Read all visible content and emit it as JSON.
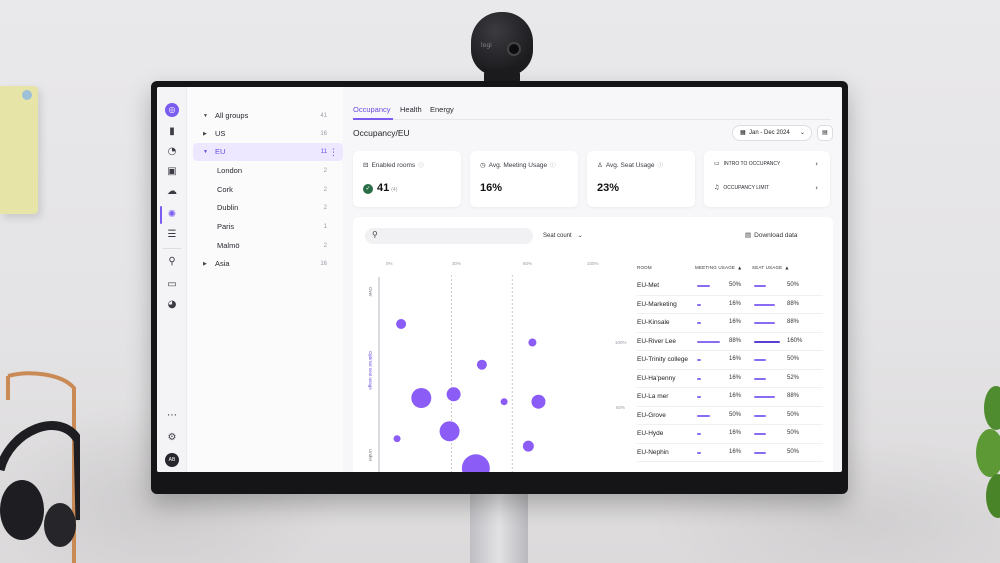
{
  "app": {
    "rail_icons": [
      "logo-icon",
      "panel-icon",
      "gauge-icon",
      "image-icon",
      "cloud-icon",
      "lightbulb-icon",
      "sliders-icon",
      "network-icon",
      "laptop-icon",
      "dashboard-icon",
      "more-icon",
      "gear-icon"
    ],
    "avatar_initials": "AB"
  },
  "tree": {
    "items": [
      {
        "label": "All groups",
        "count": "41",
        "caret": "▼"
      },
      {
        "label": "US",
        "count": "16",
        "caret": "▶"
      },
      {
        "label": "EU",
        "count": "11",
        "caret": "▼"
      },
      {
        "label": "London",
        "count": "2"
      },
      {
        "label": "Cork",
        "count": "2"
      },
      {
        "label": "Dublin",
        "count": "2"
      },
      {
        "label": "Paris",
        "count": "1"
      },
      {
        "label": "Malmö",
        "count": "2"
      },
      {
        "label": "Asia",
        "count": "16",
        "caret": "▶"
      }
    ]
  },
  "tabs": [
    {
      "label": "Occupancy"
    },
    {
      "label": "Health"
    },
    {
      "label": "Energy"
    }
  ],
  "breadcrumb": "Occupancy/EU",
  "date_range": "Jan - Dec 2024",
  "cards": {
    "enabled_rooms": {
      "title": "Enabled rooms",
      "value": "41",
      "sub": "(4)"
    },
    "meeting_usage": {
      "title": "Avg. Meeting Usage",
      "value": "16%"
    },
    "seat_usage": {
      "title": "Avg. Seat Usage",
      "value": "23%"
    },
    "links": [
      {
        "label": "INTRO TO OCCUPANCY"
      },
      {
        "label": "OCCUPANCY LIMIT"
      }
    ]
  },
  "panel": {
    "search_placeholder": "",
    "seat_dropdown": "Seat count",
    "download_label": "Download data",
    "x_ticks": [
      "0%",
      "30%",
      "60%",
      "100%"
    ],
    "y_labels": {
      "top": "Over",
      "middle": "Optimal seat usage",
      "bottom": "Under"
    },
    "right_ticks": [
      "100%",
      "50%"
    ]
  },
  "table": {
    "headers": {
      "room": "ROOM",
      "meeting": "MEETING USAGE",
      "seat": "SEAT USAGE"
    },
    "rows": [
      {
        "room": "EU-Met",
        "meeting": "50%",
        "meeting_v": 50,
        "seat": "50%",
        "seat_v": 50
      },
      {
        "room": "EU-Marketing",
        "meeting": "16%",
        "meeting_v": 16,
        "seat": "88%",
        "seat_v": 88
      },
      {
        "room": "EU-Kinsale",
        "meeting": "16%",
        "meeting_v": 16,
        "seat": "88%",
        "seat_v": 88
      },
      {
        "room": "EU-River Lee",
        "meeting": "88%",
        "meeting_v": 88,
        "seat": "160%",
        "seat_v": 160
      },
      {
        "room": "EU-Trinity college",
        "meeting": "16%",
        "meeting_v": 16,
        "seat": "50%",
        "seat_v": 50
      },
      {
        "room": "EU-Ha'penny",
        "meeting": "16%",
        "meeting_v": 16,
        "seat": "52%",
        "seat_v": 52
      },
      {
        "room": "EU-La mer",
        "meeting": "16%",
        "meeting_v": 16,
        "seat": "88%",
        "seat_v": 88
      },
      {
        "room": "EU-Grove",
        "meeting": "50%",
        "meeting_v": 50,
        "seat": "50%",
        "seat_v": 50
      },
      {
        "room": "EU-Hyde",
        "meeting": "16%",
        "meeting_v": 16,
        "seat": "50%",
        "seat_v": 50
      },
      {
        "room": "EU-Nephin",
        "meeting": "16%",
        "meeting_v": 16,
        "seat": "50%",
        "seat_v": 50
      }
    ]
  },
  "chart_data": {
    "type": "scatter",
    "xlim": [
      0,
      100
    ],
    "x_ticks": [
      "0%",
      "30%",
      "60%",
      "100%"
    ],
    "reference_lines_x": [
      30,
      60
    ],
    "points": [
      {
        "x": 5,
        "y": 80,
        "size": 5
      },
      {
        "x": 70,
        "y": 70,
        "size": 4
      },
      {
        "x": 45,
        "y": 58,
        "size": 5
      },
      {
        "x": 15,
        "y": 40,
        "size": 10
      },
      {
        "x": 31,
        "y": 42,
        "size": 7
      },
      {
        "x": 56,
        "y": 38,
        "size": 3.5
      },
      {
        "x": 73,
        "y": 38,
        "size": 7
      },
      {
        "x": 3,
        "y": 18,
        "size": 3.5
      },
      {
        "x": 29,
        "y": 22,
        "size": 10
      },
      {
        "x": 68,
        "y": 14,
        "size": 5.5
      },
      {
        "x": 42,
        "y": 2,
        "size": 14
      }
    ],
    "colors": {
      "point": "#8b5cf6"
    }
  }
}
